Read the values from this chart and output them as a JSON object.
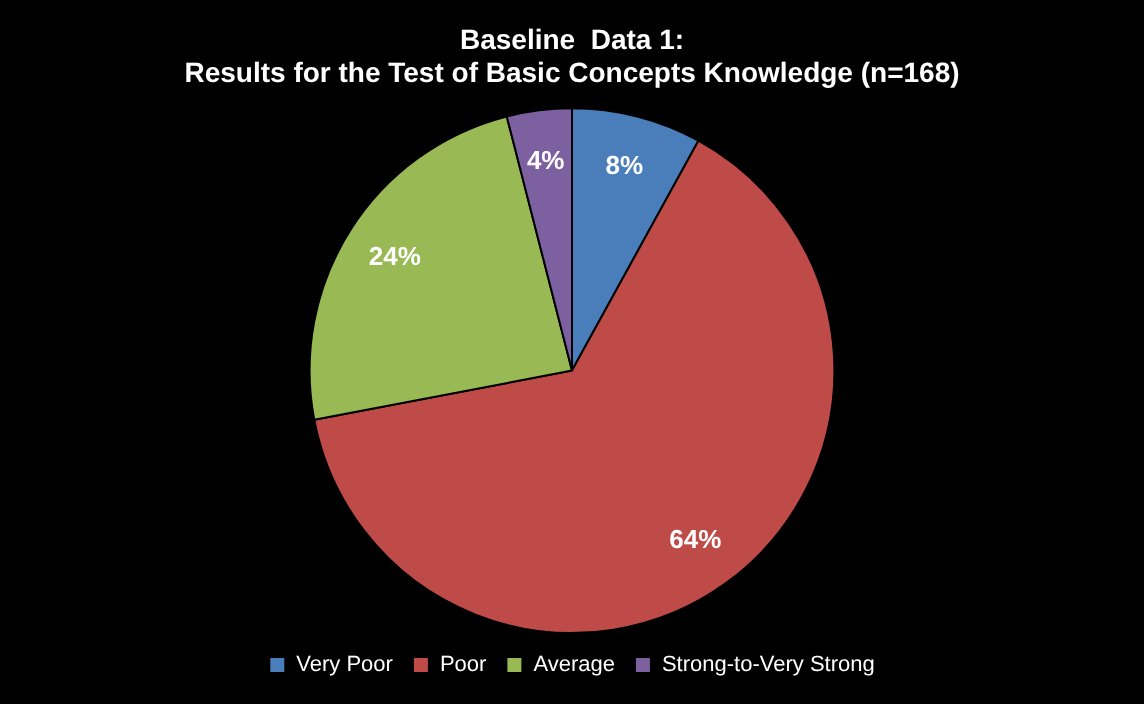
{
  "chart_data": {
    "type": "pie",
    "title": "Baseline  Data 1:\nResults for the Test of Basic Concepts Knowledge (n=168)",
    "categories": [
      "Very Poor",
      "Poor",
      "Average",
      "Strong-to-Very Strong"
    ],
    "values": [
      8,
      64,
      24,
      4
    ],
    "colors": [
      "#4a7ebb",
      "#be4b48",
      "#98b954",
      "#7d60a0"
    ],
    "value_labels": [
      "8%",
      "64%",
      "24%",
      "4%"
    ],
    "legend": "bottom"
  }
}
